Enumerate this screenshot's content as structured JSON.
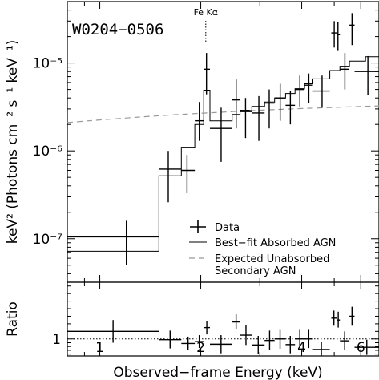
{
  "chart_data": [
    {
      "type": "scatter",
      "source_label": "W0204−0506",
      "annotation": "Fe Kα",
      "annotation_energy_keV": 2.07,
      "xlabel": "Observed−frame Energy (keV)",
      "ylabel": "keV² (Photons cm⁻² s⁻¹ keV⁻¹)",
      "xscale": "log",
      "yscale": "log",
      "xlim": [
        0.8,
        6.8
      ],
      "ylim": [
        3.2e-08,
        5e-05
      ],
      "x_ticks": [
        1,
        2,
        4,
        6
      ],
      "x_tick_labels": [
        "1",
        "2",
        "4",
        "6"
      ],
      "y_ticks": [
        1e-07,
        1e-06,
        1e-05
      ],
      "y_tick_labels": [
        "10⁻⁷",
        "10⁻⁶",
        "10⁻⁵"
      ],
      "legend": [
        "Data",
        "Best−fit Absorbed AGN",
        "Expected Unabsorbed Secondary AGN"
      ],
      "series": [
        {
          "name": "Data",
          "style": "errorbar",
          "points": [
            {
              "x": 1.2,
              "xlo": 0.8,
              "xhi": 1.5,
              "y": 1.05e-07,
              "ylo": 5e-08,
              "yhi": 1.6e-07
            },
            {
              "x": 1.6,
              "xlo": 1.5,
              "xhi": 1.75,
              "y": 6.2e-07,
              "ylo": 2.6e-07,
              "yhi": 1e-06
            },
            {
              "x": 1.82,
              "xlo": 1.75,
              "xhi": 1.92,
              "y": 6e-07,
              "ylo": 3.3e-07,
              "yhi": 9e-07
            },
            {
              "x": 1.98,
              "xlo": 1.92,
              "xhi": 2.04,
              "y": 2.2e-06,
              "ylo": 1.3e-06,
              "yhi": 3.6e-06
            },
            {
              "x": 2.08,
              "xlo": 2.04,
              "xhi": 2.13,
              "y": 8.5e-06,
              "ylo": 4.4e-06,
              "yhi": 1.3e-05
            },
            {
              "x": 2.3,
              "xlo": 2.13,
              "xhi": 2.48,
              "y": 1.8e-06,
              "ylo": 7.5e-07,
              "yhi": 3.1e-06
            },
            {
              "x": 2.55,
              "xlo": 2.48,
              "xhi": 2.62,
              "y": 3.8e-06,
              "ylo": 1.8e-06,
              "yhi": 6.5e-06
            },
            {
              "x": 2.72,
              "xlo": 2.62,
              "xhi": 2.84,
              "y": 2.8e-06,
              "ylo": 1.4e-06,
              "yhi": 4e-06
            },
            {
              "x": 2.98,
              "xlo": 2.84,
              "xhi": 3.1,
              "y": 2.7e-06,
              "ylo": 1.3e-06,
              "yhi": 4.2e-06
            },
            {
              "x": 3.2,
              "xlo": 3.1,
              "xhi": 3.32,
              "y": 3.5e-06,
              "ylo": 1.8e-06,
              "yhi": 5e-06
            },
            {
              "x": 3.45,
              "xlo": 3.32,
              "xhi": 3.58,
              "y": 4e-06,
              "ylo": 2.2e-06,
              "yhi": 5.8e-06
            },
            {
              "x": 3.7,
              "xlo": 3.58,
              "xhi": 3.82,
              "y": 3.3e-06,
              "ylo": 2e-06,
              "yhi": 4.8e-06
            },
            {
              "x": 3.95,
              "xlo": 3.82,
              "xhi": 4.08,
              "y": 5e-06,
              "ylo": 3.2e-06,
              "yhi": 7.2e-06
            },
            {
              "x": 4.2,
              "xlo": 4.08,
              "xhi": 4.32,
              "y": 5.6e-06,
              "ylo": 3.5e-06,
              "yhi": 7.6e-06
            },
            {
              "x": 4.6,
              "xlo": 4.32,
              "xhi": 4.85,
              "y": 4.8e-06,
              "ylo": 3.1e-06,
              "yhi": 7.2e-06
            },
            {
              "x": 5.0,
              "xlo": 4.9,
              "xhi": 5.08,
              "y": 2.2e-05,
              "ylo": 1.5e-05,
              "yhi": 3e-05
            },
            {
              "x": 5.13,
              "xlo": 5.08,
              "xhi": 5.2,
              "y": 2.1e-05,
              "ylo": 1.4e-05,
              "yhi": 2.9e-05
            },
            {
              "x": 5.38,
              "xlo": 5.2,
              "xhi": 5.55,
              "y": 8.5e-06,
              "ylo": 5e-06,
              "yhi": 1.3e-05
            },
            {
              "x": 5.65,
              "xlo": 5.55,
              "xhi": 5.75,
              "y": 2.7e-05,
              "ylo": 1.6e-05,
              "yhi": 3.7e-05
            },
            {
              "x": 6.3,
              "xlo": 5.75,
              "xhi": 6.8,
              "y": 8e-06,
              "ylo": 4.3e-06,
              "yhi": 1.2e-05
            }
          ]
        },
        {
          "name": "Best−fit Absorbed AGN",
          "style": "step",
          "bins": [
            {
              "xlo": 0.8,
              "xhi": 1.5,
              "y": 7.2e-08
            },
            {
              "xlo": 1.5,
              "xhi": 1.75,
              "y": 5.2e-07
            },
            {
              "xlo": 1.75,
              "xhi": 1.92,
              "y": 1.1e-06
            },
            {
              "xlo": 1.92,
              "xhi": 2.04,
              "y": 2e-06
            },
            {
              "xlo": 2.04,
              "xhi": 2.13,
              "y": 4.9e-06
            },
            {
              "xlo": 2.13,
              "xhi": 2.48,
              "y": 2.2e-06
            },
            {
              "xlo": 2.48,
              "xhi": 2.62,
              "y": 2.6e-06
            },
            {
              "xlo": 2.62,
              "xhi": 2.84,
              "y": 2.9e-06
            },
            {
              "xlo": 2.84,
              "xhi": 3.1,
              "y": 3.2e-06
            },
            {
              "xlo": 3.1,
              "xhi": 3.32,
              "y": 3.6e-06
            },
            {
              "xlo": 3.32,
              "xhi": 3.58,
              "y": 4e-06
            },
            {
              "xlo": 3.58,
              "xhi": 3.82,
              "y": 4.5e-06
            },
            {
              "xlo": 3.82,
              "xhi": 4.08,
              "y": 5.1e-06
            },
            {
              "xlo": 4.08,
              "xhi": 4.32,
              "y": 5.8e-06
            },
            {
              "xlo": 4.32,
              "xhi": 4.85,
              "y": 6.6e-06
            },
            {
              "xlo": 4.85,
              "xhi": 5.2,
              "y": 8.2e-06
            },
            {
              "xlo": 5.2,
              "xhi": 5.55,
              "y": 9.2e-06
            },
            {
              "xlo": 5.55,
              "xhi": 6.2,
              "y": 1.05e-05
            },
            {
              "xlo": 6.2,
              "xhi": 6.8,
              "y": 1.18e-05
            }
          ]
        },
        {
          "name": "Expected Unabsorbed Secondary AGN",
          "style": "dashed",
          "x": [
            0.8,
            1.0,
            1.3,
            1.6,
            2.0,
            2.5,
            3.0,
            4.0,
            5.0,
            6.0,
            6.8
          ],
          "y": [
            2.1e-06,
            2.25e-06,
            2.42e-06,
            2.55e-06,
            2.68e-06,
            2.8e-06,
            2.9e-06,
            3.03e-06,
            3.12e-06,
            3.2e-06,
            3.25e-06
          ]
        }
      ]
    },
    {
      "type": "scatter",
      "ylabel": "Ratio",
      "xscale": "log",
      "xlim": [
        0.8,
        6.8
      ],
      "ylim": [
        0.55,
        2.5
      ],
      "y_ticks": [
        1
      ],
      "y_tick_labels": [
        "1"
      ],
      "reference_line": 1,
      "series": [
        {
          "name": "Ratio",
          "style": "errorbar",
          "points": [
            {
              "xlo": 0.8,
              "xhi": 1.5,
              "y": 1.2,
              "ylo": 0.9,
              "yhi": 1.5
            },
            {
              "xlo": 1.5,
              "xhi": 1.75,
              "y": 0.98,
              "ylo": 0.75,
              "yhi": 1.22
            },
            {
              "xlo": 1.75,
              "xhi": 1.92,
              "y": 0.88,
              "ylo": 0.7,
              "yhi": 1.06
            },
            {
              "xlo": 1.92,
              "xhi": 2.04,
              "y": 0.93,
              "ylo": 0.76,
              "yhi": 1.1
            },
            {
              "xlo": 2.04,
              "xhi": 2.13,
              "y": 1.3,
              "ylo": 1.12,
              "yhi": 1.48
            },
            {
              "xlo": 2.13,
              "xhi": 2.48,
              "y": 0.86,
              "ylo": 0.62,
              "yhi": 1.1
            },
            {
              "xlo": 2.48,
              "xhi": 2.62,
              "y": 1.45,
              "ylo": 1.25,
              "yhi": 1.65
            },
            {
              "xlo": 2.62,
              "xhi": 2.84,
              "y": 1.1,
              "ylo": 0.84,
              "yhi": 1.36
            },
            {
              "xlo": 2.84,
              "xhi": 3.1,
              "y": 0.84,
              "ylo": 0.6,
              "yhi": 1.08
            },
            {
              "xlo": 3.1,
              "xhi": 3.32,
              "y": 0.96,
              "ylo": 0.7,
              "yhi": 1.22
            },
            {
              "xlo": 3.32,
              "xhi": 3.58,
              "y": 1.0,
              "ylo": 0.74,
              "yhi": 1.24
            },
            {
              "xlo": 3.58,
              "xhi": 3.82,
              "y": 0.85,
              "ylo": 0.62,
              "yhi": 1.08
            },
            {
              "xlo": 3.82,
              "xhi": 4.08,
              "y": 1.0,
              "ylo": 0.76,
              "yhi": 1.24
            },
            {
              "xlo": 4.08,
              "xhi": 4.32,
              "y": 1.0,
              "ylo": 0.76,
              "yhi": 1.24
            },
            {
              "xlo": 4.32,
              "xhi": 4.85,
              "y": 0.72,
              "ylo": 0.55,
              "yhi": 0.92
            },
            {
              "xlo": 4.9,
              "xhi": 5.08,
              "y": 1.55,
              "ylo": 1.35,
              "yhi": 1.75
            },
            {
              "xlo": 5.08,
              "xhi": 5.2,
              "y": 1.5,
              "ylo": 1.3,
              "yhi": 1.72
            },
            {
              "xlo": 5.2,
              "xhi": 5.55,
              "y": 0.95,
              "ylo": 0.7,
              "yhi": 1.2
            },
            {
              "xlo": 5.55,
              "xhi": 5.75,
              "y": 1.6,
              "ylo": 1.35,
              "yhi": 1.85
            },
            {
              "xlo": 5.75,
              "xhi": 6.8,
              "y": 0.78,
              "ylo": 0.58,
              "yhi": 0.98
            }
          ]
        }
      ]
    }
  ]
}
